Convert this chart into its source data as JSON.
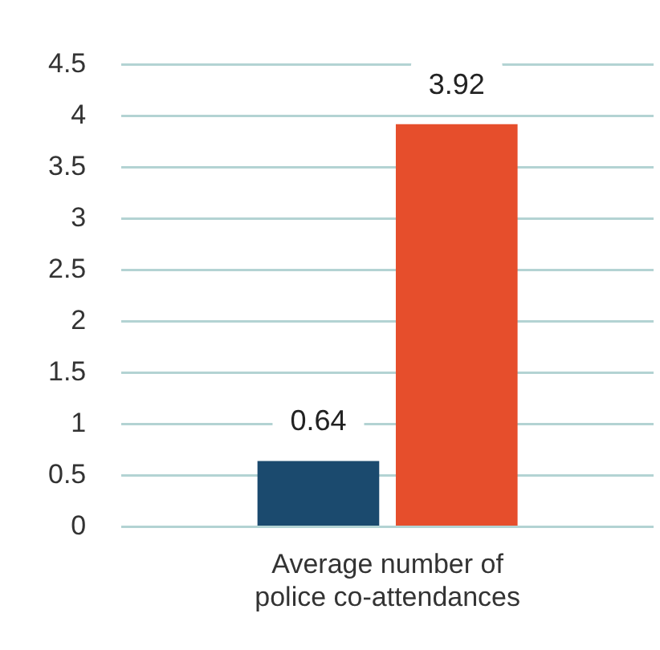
{
  "chart_data": {
    "type": "bar",
    "categories": [
      "Average number of police co-attendances"
    ],
    "series": [
      {
        "color": "#1b4a6e",
        "values": [
          0.64
        ]
      },
      {
        "color": "#e64e2c",
        "values": [
          3.92
        ]
      }
    ],
    "ylim": [
      0,
      4.5
    ],
    "yticks": [
      0,
      0.5,
      1,
      1.5,
      2,
      2.5,
      3,
      3.5,
      4,
      4.5
    ],
    "grid": "y",
    "legend": false,
    "data_labels": true
  }
}
